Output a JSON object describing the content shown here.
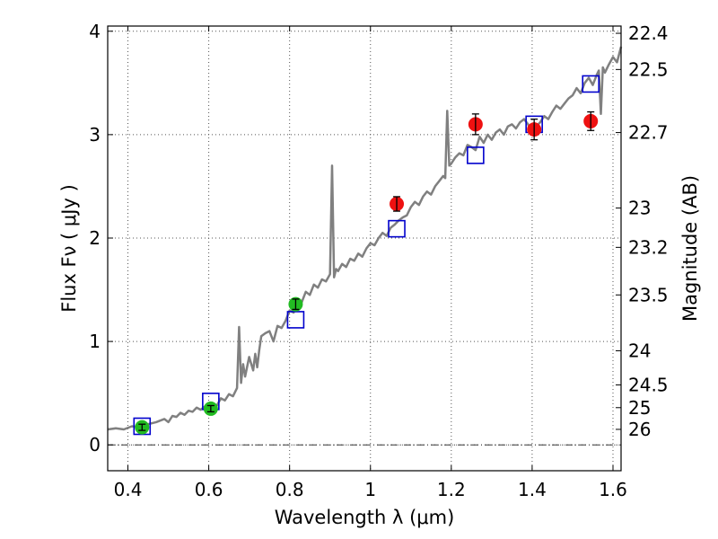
{
  "chart_data": {
    "type": "scatter",
    "title": "",
    "xlabel": "Wavelength  λ (μm)",
    "ylabel": "Flux  Fν  ( μJy )",
    "ylabel_right": "Magnitude (AB)",
    "xlim": [
      0.35,
      1.62
    ],
    "ylim": [
      -0.25,
      4.05
    ],
    "grid": true,
    "x_ticks": [
      0.4,
      0.6,
      0.8,
      1.0,
      1.2,
      1.4,
      1.6
    ],
    "x_tick_labels": [
      "0.4",
      "0.6",
      "0.8",
      "1",
      "1.2",
      "1.4",
      "1.6"
    ],
    "y_ticks": [
      0,
      1,
      2,
      3,
      4
    ],
    "y_tick_labels": [
      "0",
      "1",
      "2",
      "3",
      "4"
    ],
    "right_ticks": [
      {
        "label": "22.4",
        "flux": 3.98
      },
      {
        "label": "22.5",
        "flux": 3.63
      },
      {
        "label": "22.7",
        "flux": 3.02
      },
      {
        "label": "23",
        "flux": 2.29
      },
      {
        "label": "23.2",
        "flux": 1.91
      },
      {
        "label": "23.5",
        "flux": 1.45
      },
      {
        "label": "24",
        "flux": 0.91
      },
      {
        "label": "24.5",
        "flux": 0.58
      },
      {
        "label": "25",
        "flux": 0.36
      },
      {
        "label": "26",
        "flux": 0.15
      }
    ],
    "zero_line": 0,
    "colors": {
      "spectrum": "#808080",
      "model": "#0000cc",
      "optical": "#22bb22",
      "nir": "#ee1111",
      "grid": "#555555"
    },
    "series": [
      {
        "type": "line",
        "x": [
          0.35,
          0.37,
          0.39,
          0.41,
          0.43,
          0.45,
          0.47,
          0.49,
          0.5,
          0.51,
          0.52,
          0.53,
          0.54,
          0.55,
          0.56,
          0.57,
          0.58,
          0.59,
          0.6,
          0.61,
          0.62,
          0.63,
          0.64,
          0.65,
          0.66,
          0.67,
          0.675,
          0.68,
          0.685,
          0.69,
          0.7,
          0.71,
          0.715,
          0.72,
          0.725,
          0.73,
          0.74,
          0.75,
          0.76,
          0.77,
          0.78,
          0.79,
          0.8,
          0.81,
          0.82,
          0.83,
          0.84,
          0.85,
          0.86,
          0.87,
          0.88,
          0.89,
          0.9,
          0.905,
          0.91,
          0.915,
          0.92,
          0.93,
          0.94,
          0.95,
          0.96,
          0.97,
          0.98,
          0.99,
          1.0,
          1.01,
          1.02,
          1.03,
          1.04,
          1.05,
          1.06,
          1.07,
          1.08,
          1.09,
          1.1,
          1.11,
          1.12,
          1.13,
          1.14,
          1.15,
          1.16,
          1.17,
          1.18,
          1.185,
          1.19,
          1.195,
          1.2,
          1.21,
          1.22,
          1.23,
          1.24,
          1.25,
          1.26,
          1.27,
          1.28,
          1.29,
          1.3,
          1.31,
          1.32,
          1.33,
          1.34,
          1.35,
          1.36,
          1.37,
          1.38,
          1.39,
          1.4,
          1.41,
          1.42,
          1.43,
          1.44,
          1.45,
          1.46,
          1.47,
          1.48,
          1.49,
          1.5,
          1.51,
          1.52,
          1.53,
          1.54,
          1.55,
          1.56,
          1.565,
          1.57,
          1.575,
          1.58,
          1.59,
          1.6,
          1.61,
          1.62
        ],
        "y": [
          0.15,
          0.16,
          0.15,
          0.18,
          0.17,
          0.2,
          0.22,
          0.25,
          0.22,
          0.28,
          0.27,
          0.31,
          0.29,
          0.33,
          0.32,
          0.36,
          0.34,
          0.37,
          0.36,
          0.4,
          0.38,
          0.45,
          0.43,
          0.49,
          0.47,
          0.55,
          1.14,
          0.6,
          0.78,
          0.66,
          0.85,
          0.72,
          0.88,
          0.75,
          0.92,
          1.05,
          1.08,
          1.1,
          1.0,
          1.15,
          1.13,
          1.2,
          1.3,
          1.28,
          1.4,
          1.38,
          1.48,
          1.45,
          1.55,
          1.52,
          1.6,
          1.58,
          1.65,
          2.7,
          1.62,
          1.7,
          1.68,
          1.75,
          1.72,
          1.8,
          1.78,
          1.85,
          1.82,
          1.9,
          1.95,
          1.93,
          2.0,
          2.05,
          2.02,
          2.1,
          2.13,
          2.17,
          2.2,
          2.22,
          2.3,
          2.35,
          2.32,
          2.4,
          2.45,
          2.42,
          2.5,
          2.55,
          2.6,
          2.58,
          3.23,
          2.7,
          2.72,
          2.78,
          2.82,
          2.8,
          2.9,
          2.88,
          2.85,
          2.98,
          2.92,
          3.0,
          2.95,
          3.02,
          3.05,
          3.0,
          3.08,
          3.1,
          3.06,
          3.12,
          3.15,
          3.1,
          3.0,
          3.08,
          3.12,
          3.18,
          3.15,
          3.22,
          3.28,
          3.25,
          3.3,
          3.35,
          3.38,
          3.45,
          3.4,
          3.5,
          3.55,
          3.48,
          3.58,
          3.62,
          3.2,
          3.65,
          3.6,
          3.68,
          3.75,
          3.7,
          3.85
        ]
      },
      {
        "type": "scatter",
        "marker": "open-square",
        "x": [
          0.435,
          0.605,
          0.815,
          1.065,
          1.26,
          1.405,
          1.545
        ],
        "y": [
          0.18,
          0.42,
          1.21,
          2.09,
          2.8,
          3.1,
          3.49
        ]
      },
      {
        "type": "scatter",
        "marker": "filled-circle",
        "x": [
          0.435,
          0.605,
          0.815
        ],
        "y": [
          0.17,
          0.35,
          1.36
        ],
        "yerr": [
          0.03,
          0.03,
          0.05
        ]
      },
      {
        "type": "scatter",
        "marker": "filled-circle",
        "x": [
          1.065,
          1.26,
          1.405,
          1.545
        ],
        "y": [
          2.33,
          3.1,
          3.05,
          3.13
        ],
        "yerr": [
          0.07,
          0.1,
          0.1,
          0.09
        ]
      }
    ]
  }
}
